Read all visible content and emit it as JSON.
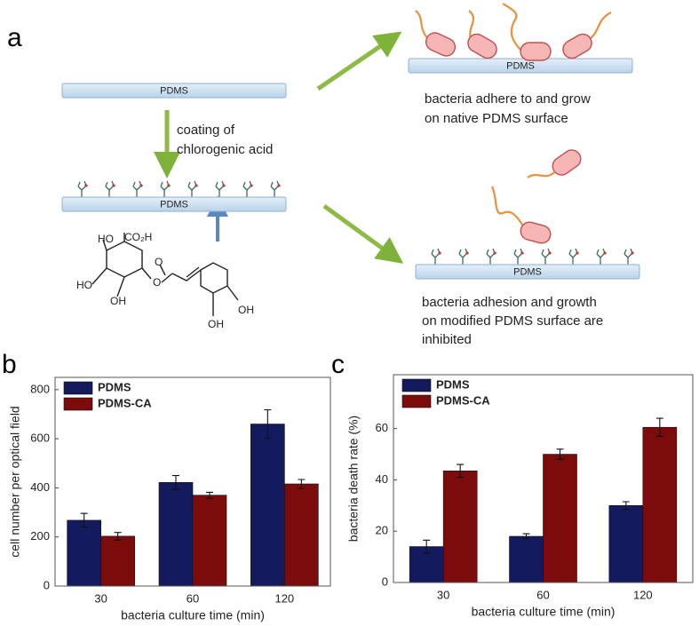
{
  "panel_labels": [
    "a",
    "b",
    "c"
  ],
  "diagram": {
    "surfaces": [
      "PDMS",
      "PDMS",
      "PDMS",
      "PDMS"
    ],
    "coating_label": [
      "coating of",
      "chlorogenic acid"
    ],
    "top_caption": [
      "bacteria adhere to and grow",
      "on native PDMS surface"
    ],
    "bottom_caption": [
      "bacteria adhesion and growth",
      "on modified PDMS surface are",
      "inhibited"
    ],
    "molecule_labels": [
      "HO",
      "CO₂H",
      "HO",
      "OH",
      "O",
      "O",
      "OH",
      "OH"
    ]
  },
  "chart_data": [
    {
      "type": "bar",
      "categories": [
        "30",
        "60",
        "120"
      ],
      "series": [
        {
          "name": "PDMS",
          "color": "#141a5e",
          "values": [
            268,
            422,
            660
          ],
          "errors": [
            28,
            28,
            58
          ]
        },
        {
          "name": "PDMS-CA",
          "color": "#7c0b0b",
          "values": [
            203,
            370,
            416
          ],
          "errors": [
            15,
            12,
            18
          ]
        }
      ],
      "x_label": "bacteria culture time (min)",
      "y_label": "cell number per optical field",
      "ylim": [
        0,
        850
      ],
      "yticks": [
        0,
        200,
        400,
        600,
        800
      ],
      "legend": "upper-left"
    },
    {
      "type": "bar",
      "categories": [
        "30",
        "60",
        "120"
      ],
      "series": [
        {
          "name": "PDMS",
          "color": "#141a5e",
          "values": [
            14,
            18,
            30
          ],
          "errors": [
            2.5,
            1,
            1.5
          ]
        },
        {
          "name": "PDMS-CA",
          "color": "#7c0b0b",
          "values": [
            43.5,
            50,
            60.5
          ],
          "errors": [
            2.5,
            2,
            3.5
          ]
        }
      ],
      "x_label": "bacteria culture time (min)",
      "y_label": "bacteria death rate (%)",
      "ylim": [
        0,
        81
      ],
      "yticks": [
        0,
        20,
        40,
        60
      ],
      "legend": "upper-left"
    }
  ]
}
